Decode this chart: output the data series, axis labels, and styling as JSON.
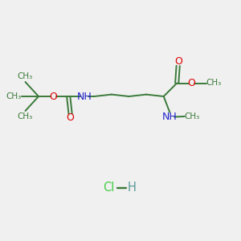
{
  "bg_color": "#f0f0f0",
  "bond_color": "#3a7a3a",
  "O_color": "#dd0000",
  "N_color": "#2222cc",
  "Cl_color": "#44cc44",
  "H_color": "#5a9a9a",
  "line_width": 1.4,
  "font_size": 8.5,
  "xlim": [
    0,
    10
  ],
  "ylim": [
    0,
    10
  ]
}
